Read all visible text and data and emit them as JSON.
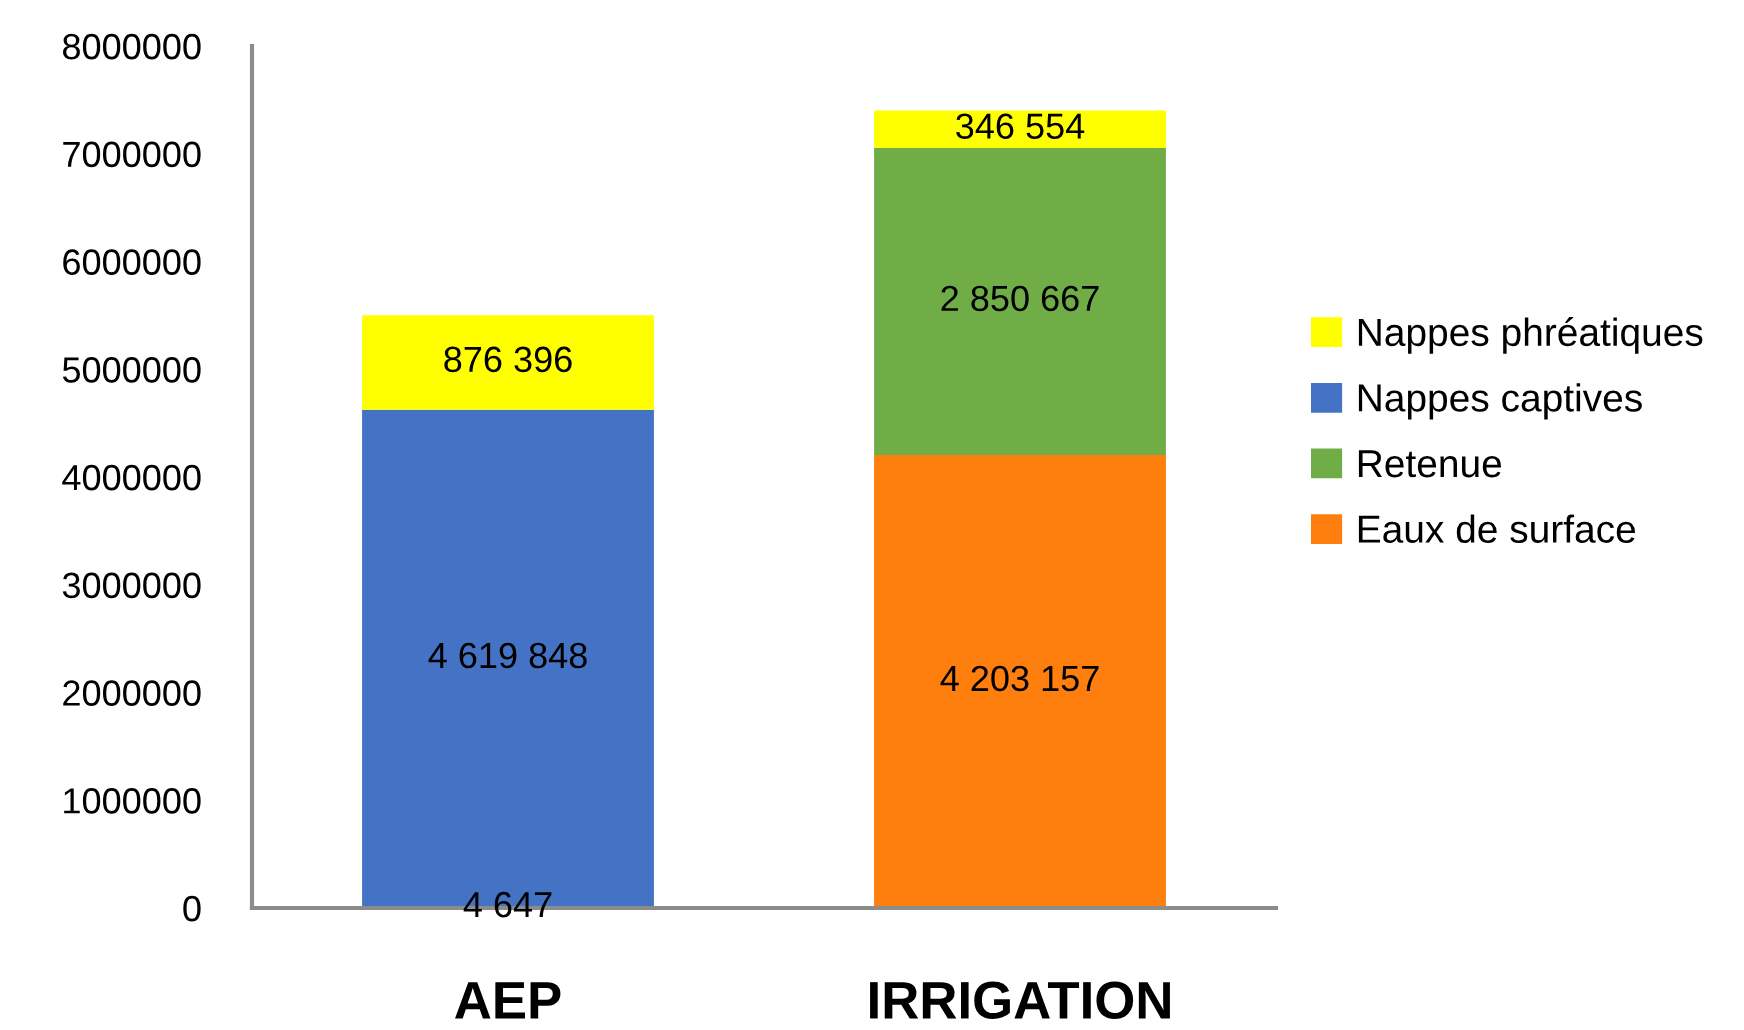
{
  "chart_data": {
    "type": "bar",
    "stacked": true,
    "categories": [
      "AEP",
      "IRRIGATION"
    ],
    "series": [
      {
        "name": "Eaux de surface",
        "color": "#ff7f0e",
        "values": [
          4647,
          4203157
        ],
        "value_labels": [
          "4 647",
          "4 203 157"
        ]
      },
      {
        "name": "Retenue",
        "color": "#70ad47",
        "values": [
          null,
          2850667
        ],
        "value_labels": [
          null,
          "2 850 667"
        ]
      },
      {
        "name": "Nappes captives",
        "color": "#4472c4",
        "values": [
          4619848,
          null
        ],
        "value_labels": [
          "4 619 848",
          null
        ]
      },
      {
        "name": "Nappes phréatiques",
        "color": "#ffff00",
        "values": [
          876396,
          346554
        ],
        "value_labels": [
          "876 396",
          "346 554"
        ]
      }
    ],
    "ylim": [
      0,
      8000000
    ],
    "yticks": [
      0,
      1000000,
      2000000,
      3000000,
      4000000,
      5000000,
      6000000,
      7000000,
      8000000
    ],
    "grid": false,
    "legend": "right"
  }
}
